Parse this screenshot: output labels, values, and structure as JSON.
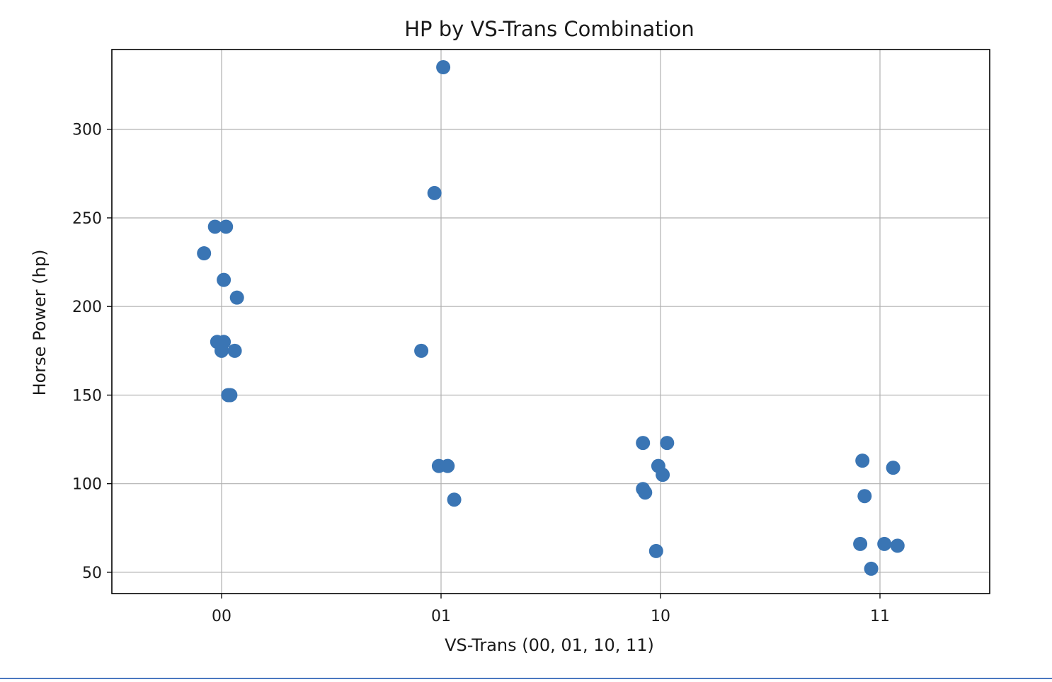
{
  "chart_data": {
    "type": "scatter",
    "title": "HP by VS-Trans Combination",
    "xlabel": "VS-Trans (00, 01, 10, 11)",
    "ylabel": "Horse Power (hp)",
    "categories": [
      "00",
      "01",
      "10",
      "11"
    ],
    "xlim": [
      -0.5,
      3.5
    ],
    "ylim": [
      38,
      345
    ],
    "yticks": [
      50,
      100,
      150,
      200,
      250,
      300
    ],
    "grid": true,
    "point_color": "#3a75b4",
    "points": [
      {
        "x": -0.08,
        "y": 230
      },
      {
        "x": -0.03,
        "y": 245
      },
      {
        "x": 0.02,
        "y": 245
      },
      {
        "x": 0.01,
        "y": 215
      },
      {
        "x": 0.07,
        "y": 205
      },
      {
        "x": -0.02,
        "y": 180
      },
      {
        "x": 0.01,
        "y": 180
      },
      {
        "x": 0.0,
        "y": 175
      },
      {
        "x": 0.06,
        "y": 175
      },
      {
        "x": 0.03,
        "y": 150
      },
      {
        "x": 0.04,
        "y": 150
      },
      {
        "x": 1.01,
        "y": 335
      },
      {
        "x": 0.97,
        "y": 264
      },
      {
        "x": 0.91,
        "y": 175
      },
      {
        "x": 0.99,
        "y": 110
      },
      {
        "x": 1.03,
        "y": 110
      },
      {
        "x": 1.06,
        "y": 91
      },
      {
        "x": 1.92,
        "y": 123
      },
      {
        "x": 2.03,
        "y": 123
      },
      {
        "x": 1.99,
        "y": 110
      },
      {
        "x": 2.01,
        "y": 105
      },
      {
        "x": 1.92,
        "y": 97
      },
      {
        "x": 1.93,
        "y": 95
      },
      {
        "x": 1.98,
        "y": 62
      },
      {
        "x": 2.92,
        "y": 113
      },
      {
        "x": 3.06,
        "y": 109
      },
      {
        "x": 2.93,
        "y": 93
      },
      {
        "x": 2.91,
        "y": 66
      },
      {
        "x": 3.02,
        "y": 66
      },
      {
        "x": 3.08,
        "y": 65
      },
      {
        "x": 2.96,
        "y": 52
      }
    ]
  }
}
